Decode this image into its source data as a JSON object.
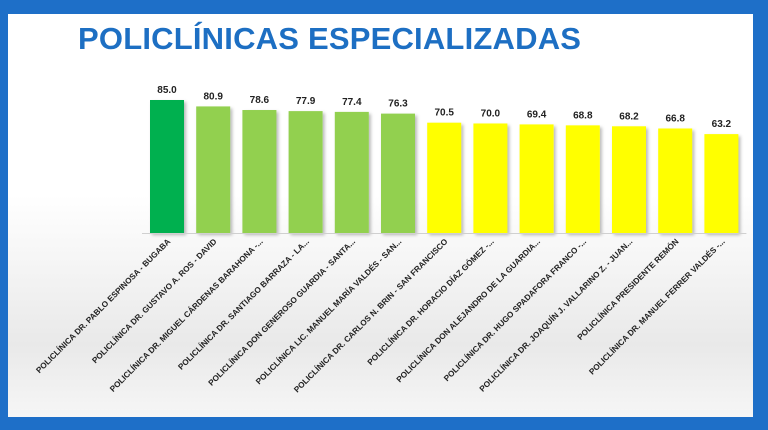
{
  "colors": {
    "frame": "#1e6fc8",
    "title": "#1d6fc3",
    "top": "#00b050",
    "high": "#92d050",
    "mid": "#ffff00"
  },
  "chart_data": {
    "type": "bar",
    "title": "POLICLÍNICAS ESPECIALIZADAS",
    "xlabel": "",
    "ylabel": "",
    "ylim": [
      0,
      85
    ],
    "grid": false,
    "legend": "none",
    "categories": [
      "POLICLÍNICA DR. PABLO ESPINOSA - BUGABA",
      "POLICLÍNICA DR. GUSTAVO A. ROS - DAVID",
      "POLICLÍNICA DR. MIGUEL CÁRDENAS BARAHONA -...",
      "POLICLÍNICA DR. SANTIAGO BARRAZA - LA...",
      "POLICLÍNICA DON GENEROSO GUARDIA - SANTA...",
      "POLICLÍNICA LIC. MANUEL MARÍA VALDÉS - SAN...",
      "POLICLÍNICA DR. CARLOS N. BRIN - SAN FRANCISCO",
      "POLICLÍNICA DR. HORACIO DÍAZ GÓMEZ -...",
      "POLICLÍNICA DON ALEJANDRO DE LA GUARDIA...",
      "POLICLÍNICA DR. HUGO SPADAFORA FRANCO -...",
      "POLICLÍNICA DR. JOAQUÍN J. VALLARINO Z. - JUAN...",
      "POLICLÍNICA PRESIDENTE REMÓN",
      "POLICLÍNICA DR. MANUEL FERRER VALDÉS -..."
    ],
    "values": [
      85.0,
      80.9,
      78.6,
      77.9,
      77.4,
      76.3,
      70.5,
      70.0,
      69.4,
      68.8,
      68.2,
      66.8,
      63.2
    ],
    "value_labels": [
      "85.0",
      "80.9",
      "78.6",
      "77.9",
      "77.4",
      "76.3",
      "70.5",
      "70.0",
      "69.4",
      "68.8",
      "68.2",
      "66.8",
      "63.2"
    ],
    "bar_colors": [
      "#00b050",
      "#92d050",
      "#92d050",
      "#92d050",
      "#92d050",
      "#92d050",
      "#ffff00",
      "#ffff00",
      "#ffff00",
      "#ffff00",
      "#ffff00",
      "#ffff00",
      "#ffff00"
    ]
  }
}
